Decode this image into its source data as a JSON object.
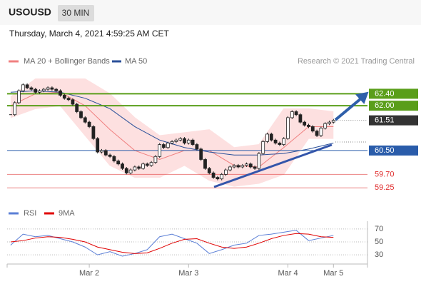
{
  "header": {
    "symbol": "USOUSD",
    "interval": "30 MIN",
    "datetime": "Thursday, March 4, 2021 4:59:25 AM CET"
  },
  "chart_data": [
    {
      "type": "candlestick",
      "credit": "Research © 2021 Trading Central",
      "categories": [
        null,
        null,
        null,
        null,
        null,
        null,
        null,
        null,
        null,
        null,
        null,
        null,
        null,
        null,
        null,
        null,
        null,
        null,
        null,
        "Mar 2",
        null,
        null,
        null,
        null,
        null,
        null,
        null,
        null,
        null,
        null,
        null,
        null,
        null,
        null,
        null,
        null,
        null,
        null,
        null,
        null,
        null,
        null,
        null,
        "Mar 3",
        null,
        null,
        null,
        null,
        null,
        null,
        null,
        null,
        null,
        null,
        null,
        null,
        null,
        null,
        null,
        null,
        null,
        null,
        null,
        null,
        null,
        null,
        null,
        "Mar 4",
        null,
        null,
        null,
        null,
        null,
        null,
        null,
        null,
        null,
        null,
        "Mar 5"
      ],
      "close": [
        61.7,
        62.1,
        62.5,
        62.7,
        62.6,
        62.55,
        62.45,
        62.5,
        62.55,
        62.6,
        62.55,
        62.5,
        62.35,
        62.25,
        62.2,
        62.05,
        61.8,
        61.6,
        61.45,
        61.3,
        60.9,
        60.45,
        60.5,
        60.35,
        60.3,
        60.15,
        60.05,
        59.9,
        59.75,
        59.85,
        59.95,
        59.9,
        60.05,
        60.0,
        60.1,
        60.3,
        60.7,
        60.6,
        60.75,
        60.8,
        60.85,
        60.9,
        60.75,
        60.85,
        60.7,
        60.55,
        60.2,
        59.9,
        59.75,
        59.6,
        59.55,
        59.7,
        59.85,
        59.95,
        60.0,
        59.95,
        60.0,
        60.05,
        59.95,
        59.9,
        60.4,
        60.8,
        61.05,
        60.85,
        60.75,
        60.7,
        60.9,
        61.6,
        61.8,
        61.7,
        61.45,
        61.35,
        61.3,
        61.15,
        61.0,
        61.25,
        61.4,
        61.45,
        61.51
      ],
      "ylim": [
        58.85,
        63.15
      ],
      "overlays": [
        {
          "name": "MA 20 + Bollinger Bands",
          "color": "#f08080",
          "band_color": "#fde0e0",
          "x": [
            0,
            6,
            12,
            18,
            24,
            30,
            36,
            42,
            48,
            54,
            60,
            66,
            72,
            78
          ],
          "values": [
            62.0,
            62.4,
            62.45,
            62.0,
            61.2,
            60.5,
            60.2,
            60.5,
            60.5,
            60.0,
            59.95,
            60.6,
            61.3,
            61.3
          ],
          "upper": [
            62.3,
            62.9,
            62.9,
            62.9,
            62.4,
            61.6,
            61.0,
            61.1,
            61.2,
            60.6,
            60.7,
            61.9,
            61.9,
            61.8
          ],
          "lower": [
            61.6,
            61.9,
            62.0,
            61.0,
            60.0,
            59.6,
            59.6,
            60.0,
            59.5,
            59.3,
            59.4,
            59.7,
            60.9,
            60.9
          ]
        },
        {
          "name": "MA 50",
          "color": "#2a4f99",
          "x": [
            0,
            6,
            12,
            18,
            24,
            30,
            36,
            42,
            48,
            54,
            60,
            66,
            72,
            78
          ],
          "values": [
            62.45,
            62.5,
            62.45,
            62.25,
            61.9,
            61.3,
            60.85,
            60.6,
            60.45,
            60.35,
            60.35,
            60.4,
            60.55,
            60.75
          ]
        }
      ],
      "levels": [
        {
          "value": 62.4,
          "label": "62.40",
          "color": "#5a9e1a",
          "style": "box"
        },
        {
          "value": 62.0,
          "label": "62.00",
          "color": "#5a9e1a",
          "style": "box"
        },
        {
          "value": 61.51,
          "label": "61.51",
          "color": "#333333",
          "style": "last"
        },
        {
          "value": 60.5,
          "label": "60.50",
          "color": "#2a5caa",
          "style": "box"
        },
        {
          "value": 59.7,
          "label": "59.70",
          "color": "#e03030",
          "style": "text"
        },
        {
          "value": 59.25,
          "label": "59.25",
          "color": "#e03030",
          "style": "text"
        }
      ]
    },
    {
      "type": "line",
      "x": [
        0,
        3,
        6,
        9,
        12,
        15,
        18,
        21,
        24,
        27,
        30,
        33,
        36,
        39,
        42,
        45,
        48,
        51,
        54,
        57,
        60,
        63,
        66,
        69,
        72,
        75,
        78
      ],
      "series": [
        {
          "name": "RSI",
          "color": "#5b7fd6",
          "values": [
            45,
            62,
            58,
            60,
            55,
            50,
            42,
            30,
            35,
            28,
            32,
            38,
            58,
            62,
            55,
            48,
            32,
            38,
            45,
            48,
            60,
            62,
            65,
            68,
            52,
            56,
            60
          ]
        },
        {
          "name": "9MA",
          "color": "#e00000",
          "values": [
            50,
            52,
            56,
            58,
            57,
            54,
            50,
            42,
            38,
            34,
            32,
            33,
            40,
            48,
            54,
            55,
            48,
            42,
            40,
            42,
            48,
            55,
            60,
            63,
            62,
            58,
            57
          ]
        }
      ],
      "ylim": [
        18,
        82
      ],
      "yticks": [
        30,
        50,
        70
      ]
    }
  ]
}
